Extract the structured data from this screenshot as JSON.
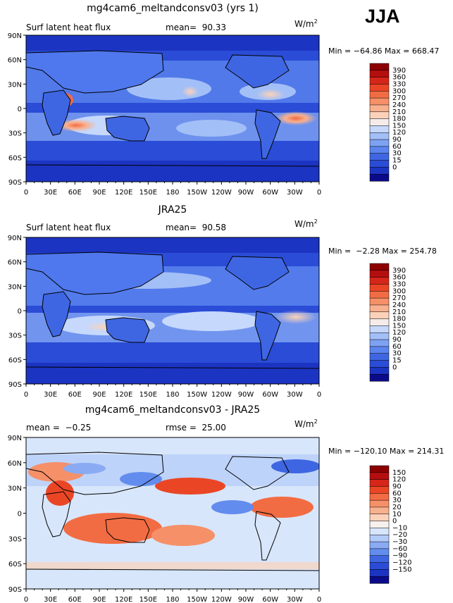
{
  "season": "JJA",
  "colors": {
    "ocean_deep": "#1d3fd6",
    "ocean_mid": "#4f78ee",
    "land_light": "#9fbdf6",
    "warm": "#f7c9a8",
    "hot": "#e8562f",
    "coast": "#000000"
  },
  "x_ticks": [
    "0",
    "30E",
    "60E",
    "90E",
    "120E",
    "150E",
    "180",
    "150W",
    "120W",
    "90W",
    "60W",
    "30W",
    "0"
  ],
  "y_ticks": [
    "90N",
    "60N",
    "30N",
    "0",
    "30S",
    "60S",
    "90S"
  ],
  "panels": [
    {
      "title": "mg4cam6_meltandconsv03 (yrs 1)",
      "left_label": "Surf latent heat flux",
      "mid_label": "mean=  90.33",
      "units": "W/m",
      "units_sup": "2",
      "minmax": "Min = −64.86 Max = 668.47",
      "colorbar_labels": [
        "390",
        "360",
        "330",
        "300",
        "270",
        "240",
        "210",
        "180",
        "150",
        "120",
        "90",
        "60",
        "30",
        "15",
        "0"
      ],
      "colorbar_colors": [
        "#8b0000",
        "#b50e0e",
        "#d6261a",
        "#ea4626",
        "#f26c43",
        "#f59069",
        "#f8b18f",
        "#fbd2b9",
        "#f5ecea",
        "#c6d8fb",
        "#a3bff7",
        "#7ea2f3",
        "#5b84ee",
        "#3f66e2",
        "#2a4cd6",
        "#1c34c2",
        "#0b0b8a"
      ]
    },
    {
      "title": "JRA25",
      "left_label": "Surf latent heat flux",
      "mid_label": "mean=  90.58",
      "units": "W/m",
      "units_sup": "2",
      "minmax": "Min =  −2.28 Max = 254.78",
      "colorbar_labels": [
        "390",
        "360",
        "330",
        "300",
        "270",
        "240",
        "210",
        "180",
        "150",
        "120",
        "90",
        "60",
        "30",
        "15",
        "0"
      ],
      "colorbar_colors": [
        "#8b0000",
        "#b50e0e",
        "#d6261a",
        "#ea4626",
        "#f26c43",
        "#f59069",
        "#f8b18f",
        "#fbd2b9",
        "#f5ecea",
        "#c6d8fb",
        "#a3bff7",
        "#7ea2f3",
        "#5b84ee",
        "#3f66e2",
        "#2a4cd6",
        "#1c34c2",
        "#0b0b8a"
      ]
    },
    {
      "title": "mg4cam6_meltandconsv03 - JRA25",
      "left_label": "mean =  −0.25",
      "mid_label": "rmse =  25.00",
      "units": "W/m",
      "units_sup": "2",
      "minmax": "Min = −120.10 Max = 214.31",
      "colorbar_labels": [
        "150",
        "120",
        "90",
        "60",
        "30",
        "20",
        "10",
        "0",
        "−10",
        "−20",
        "−30",
        "−60",
        "−90",
        "−120",
        "−150"
      ],
      "colorbar_colors": [
        "#8b0000",
        "#b50e0e",
        "#d6261a",
        "#ea4626",
        "#f26c43",
        "#f59069",
        "#f8b18f",
        "#fbd2b9",
        "#f6f0ee",
        "#d8e6fb",
        "#b3cbf8",
        "#8aabf4",
        "#628cee",
        "#3f66e2",
        "#2a4cd6",
        "#1c34c2",
        "#0b0b8a"
      ]
    }
  ]
}
